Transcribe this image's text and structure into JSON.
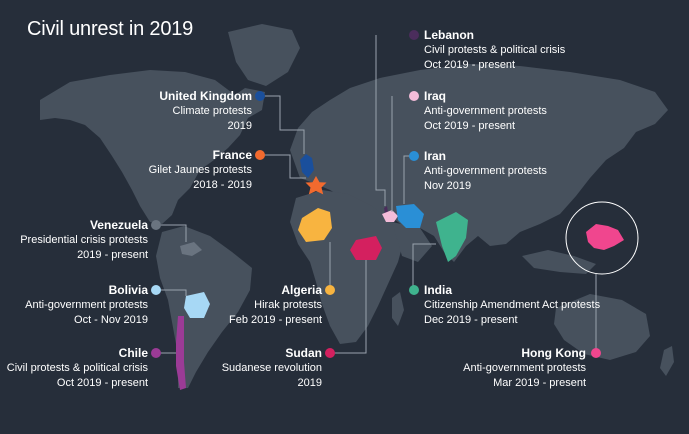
{
  "title": "Civil unrest in 2019",
  "colors": {
    "background": "#262e3a",
    "land": "#47515d",
    "leader": "#9aa2ad"
  },
  "events": [
    {
      "country": "Lebanon",
      "event": "Civil protests & political crisis",
      "period": "Oct 2019 - present",
      "color": "#4b2d5c"
    },
    {
      "country": "United Kingdom",
      "event": "Climate protests",
      "period": "2019",
      "color": "#1a4f9c"
    },
    {
      "country": "Iraq",
      "event": "Anti-government protests",
      "period": "Oct 2019 - present",
      "color": "#f4bcd9"
    },
    {
      "country": "France",
      "event": "Gilet Jaunes protests",
      "period": "2018 - 2019",
      "color": "#f26a2e"
    },
    {
      "country": "Iran",
      "event": "Anti-government protests",
      "period": "Nov 2019",
      "color": "#2a8fd6"
    },
    {
      "country": "Venezuela",
      "event": "Presidential crisis protests",
      "period": "2019 - present",
      "color": "#6a7480"
    },
    {
      "country": "Bolivia",
      "event": "Anti-government protests",
      "period": "Oct - Nov 2019",
      "color": "#a7d8f5"
    },
    {
      "country": "Algeria",
      "event": "Hirak protests",
      "period": "Feb 2019 - present",
      "color": "#f8b440"
    },
    {
      "country": "India",
      "event": "Citizenship Amendment Act protests",
      "period": "Dec 2019 - present",
      "color": "#3fb38e"
    },
    {
      "country": "Chile",
      "event": "Civil protests & political crisis",
      "period": "Oct 2019 - present",
      "color": "#9b3b96"
    },
    {
      "country": "Sudan",
      "event": "Sudanese revolution",
      "period": "2019",
      "color": "#d4205f"
    },
    {
      "country": "Hong Kong",
      "event": "Anti-government protests",
      "period": "Mar 2019 - present",
      "color": "#f0468e"
    }
  ]
}
